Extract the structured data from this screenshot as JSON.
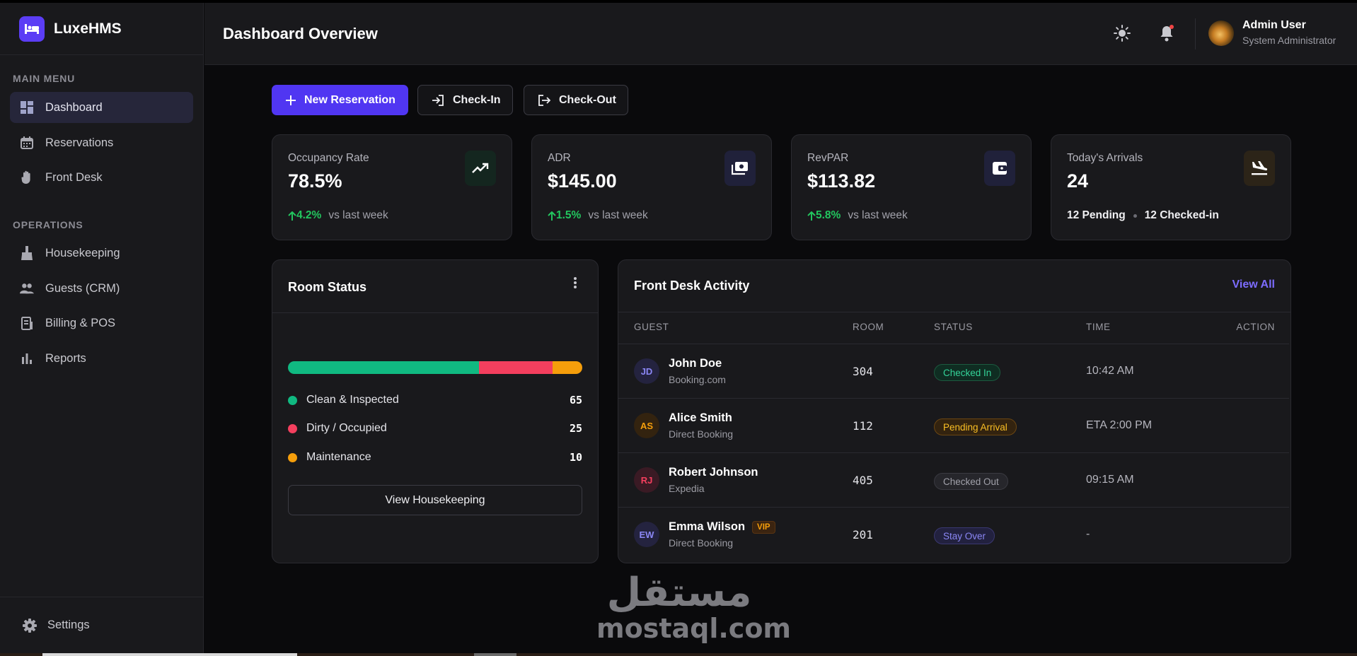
{
  "app": {
    "name": "LuxeHMS"
  },
  "sidebar": {
    "sections": [
      {
        "label": "MAIN MENU"
      },
      {
        "label": "OPERATIONS"
      }
    ],
    "items": [
      {
        "label": "Dashboard",
        "icon": "dashboard-icon",
        "active": true
      },
      {
        "label": "Reservations",
        "icon": "calendar-icon"
      },
      {
        "label": "Front Desk",
        "icon": "hand-icon"
      },
      {
        "label": "Housekeeping",
        "icon": "broom-icon"
      },
      {
        "label": "Guests (CRM)",
        "icon": "people-icon"
      },
      {
        "label": "Billing & POS",
        "icon": "receipt-icon"
      },
      {
        "label": "Reports",
        "icon": "bar-chart-icon"
      }
    ],
    "footer": {
      "label": "Settings",
      "icon": "gear-icon"
    }
  },
  "header": {
    "title": "Dashboard Overview",
    "user": {
      "name": "Admin User",
      "role": "System Administrator"
    }
  },
  "actions": {
    "new_reservation": "New Reservation",
    "check_in": "Check-In",
    "check_out": "Check-Out"
  },
  "kpis": [
    {
      "label": "Occupancy Rate",
      "value": "78.5%",
      "delta": "4.2%",
      "note": "vs last week",
      "icon": "trending-up-icon"
    },
    {
      "label": "ADR",
      "value": "$145.00",
      "delta": "1.5%",
      "note": "vs last week",
      "icon": "money-icon"
    },
    {
      "label": "RevPAR",
      "value": "$113.82",
      "delta": "5.8%",
      "note": "vs last week",
      "icon": "wallet-icon"
    },
    {
      "label": "Today's Arrivals",
      "value": "24",
      "pending": "12 Pending",
      "checked_in": "12 Checked-in",
      "icon": "plane-landing-icon"
    }
  ],
  "room_status": {
    "title": "Room Status",
    "segments": [
      {
        "label": "Clean & Inspected",
        "count": "65",
        "value": 65,
        "color": "#10b981"
      },
      {
        "label": "Dirty / Occupied",
        "count": "25",
        "value": 25,
        "color": "#f43f5e"
      },
      {
        "label": "Maintenance",
        "count": "10",
        "value": 10,
        "color": "#f59e0b"
      }
    ],
    "button": "View Housekeeping"
  },
  "activity": {
    "title": "Front Desk Activity",
    "view_all": "View All",
    "columns": [
      "GUEST",
      "ROOM",
      "STATUS",
      "TIME",
      "ACTION"
    ],
    "rows": [
      {
        "initials": "JD",
        "name": "John Doe",
        "source": "Booking.com",
        "room": "304",
        "status": "Checked In",
        "time": "10:42 AM",
        "vip": ""
      },
      {
        "initials": "AS",
        "name": "Alice Smith",
        "source": "Direct Booking",
        "room": "112",
        "status": "Pending Arrival",
        "time": "ETA 2:00 PM",
        "vip": ""
      },
      {
        "initials": "RJ",
        "name": "Robert Johnson",
        "source": "Expedia",
        "room": "405",
        "status": "Checked Out",
        "time": "09:15 AM",
        "vip": ""
      },
      {
        "initials": "EW",
        "name": "Emma Wilson",
        "source": "Direct Booking",
        "room": "201",
        "status": "Stay Over",
        "time": "-",
        "vip": "VIP"
      }
    ]
  },
  "watermark": {
    "arabic": "مستقل",
    "latin": "mostaql.com"
  },
  "colors": {
    "accent": "#5036f2",
    "positive": "#22c55e",
    "danger": "#f43f5e",
    "warning": "#f59e0b"
  }
}
